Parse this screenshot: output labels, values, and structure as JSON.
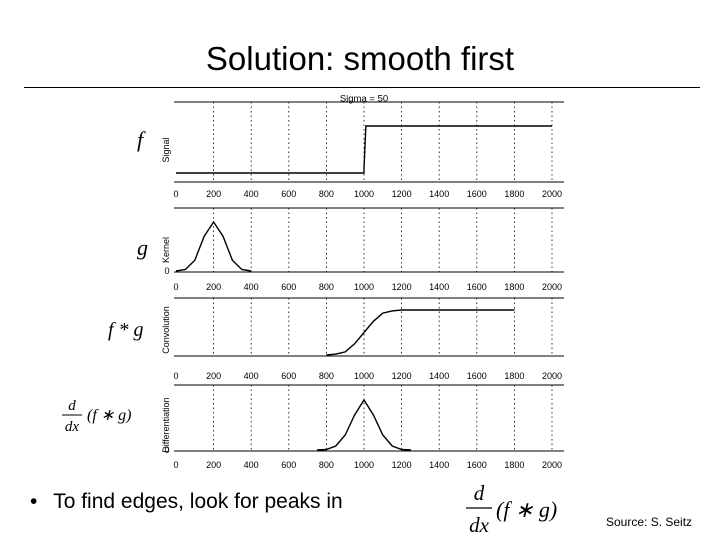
{
  "slide": {
    "title": "Solution: smooth first",
    "bullet_marker": "•",
    "bullet_text": "To find edges, look for peaks in",
    "source": "Source: S. Seitz",
    "formula": {
      "numerator": "d",
      "denominator": "dx",
      "expr": "(f ∗ g)"
    }
  },
  "chart_data": [
    {
      "type": "line",
      "title": "Sigma = 50",
      "left_label": "f",
      "ylabel": "Signal",
      "x_ticks": [
        0,
        200,
        400,
        600,
        800,
        1000,
        1200,
        1400,
        1600,
        1800,
        2000
      ],
      "xlim": [
        0,
        2000
      ],
      "series": [
        {
          "x": [
            0,
            1000,
            1000,
            1010,
            2000
          ],
          "y": [
            0,
            0,
            0.1,
            1,
            1
          ]
        }
      ]
    },
    {
      "type": "line",
      "title": "",
      "left_label": "g",
      "ylabel": "Kernel",
      "y_tick": "0",
      "x_ticks": [
        0,
        200,
        400,
        600,
        800,
        1000,
        1200,
        1400,
        1600,
        1800,
        2000
      ],
      "xlim": [
        0,
        2000
      ],
      "series": [
        {
          "x": [
            0,
            50,
            100,
            150,
            200,
            250,
            300,
            350,
            400
          ],
          "y": [
            0,
            0.03,
            0.22,
            0.71,
            1,
            0.71,
            0.22,
            0.03,
            0
          ]
        }
      ]
    },
    {
      "type": "line",
      "title": "",
      "left_label": "f * g",
      "ylabel": "Convolution",
      "x_ticks": [
        0,
        200,
        400,
        600,
        800,
        1000,
        1200,
        1400,
        1600,
        1800,
        2000
      ],
      "xlim": [
        0,
        2000
      ],
      "series": [
        {
          "x": [
            800,
            850,
            900,
            950,
            1000,
            1050,
            1100,
            1150,
            1200,
            1800
          ],
          "y": [
            0,
            0.02,
            0.07,
            0.25,
            0.5,
            0.75,
            0.93,
            0.98,
            1,
            1
          ]
        }
      ]
    },
    {
      "type": "line",
      "title": "",
      "left_label": "d/dx (f * g)",
      "ylabel": "Differentiation",
      "y_tick": "0",
      "x_ticks": [
        0,
        200,
        400,
        600,
        800,
        1000,
        1200,
        1400,
        1600,
        1800,
        2000
      ],
      "xlim": [
        0,
        2000
      ],
      "series": [
        {
          "x": [
            750,
            800,
            850,
            900,
            950,
            1000,
            1050,
            1100,
            1150,
            1200,
            1250
          ],
          "y": [
            0,
            0.01,
            0.08,
            0.3,
            0.7,
            1,
            0.7,
            0.3,
            0.08,
            0.01,
            0
          ]
        }
      ]
    }
  ]
}
